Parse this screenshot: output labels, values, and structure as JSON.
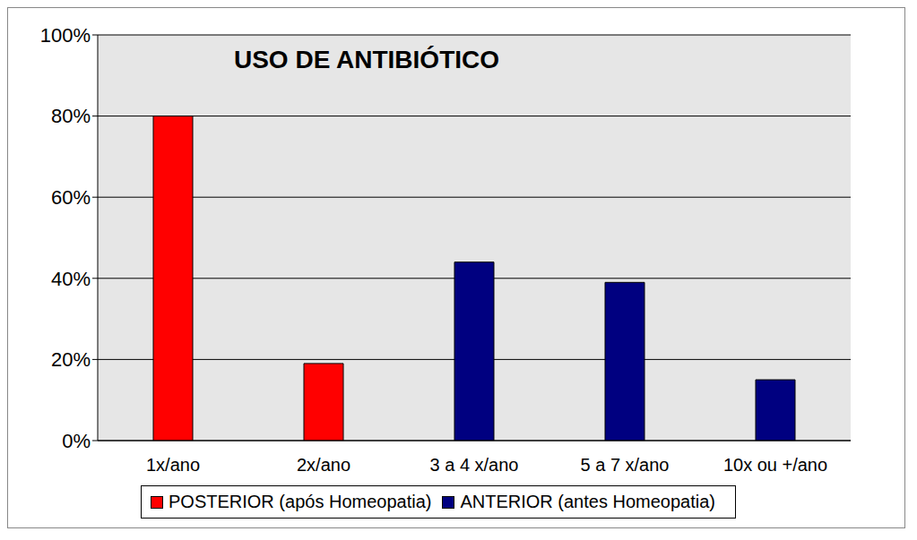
{
  "chart_data": {
    "type": "bar",
    "title": "USO DE ANTIBIÓTICO",
    "categories": [
      "1x/ano",
      "2x/ano",
      "3 a 4 x/ano",
      "5 a 7 x/ano",
      "10x ou +/ano"
    ],
    "series": [
      {
        "name": "POSTERIOR (após Homeopatia)",
        "color": "#ff0000",
        "values": [
          80,
          19,
          null,
          null,
          null
        ]
      },
      {
        "name": "ANTERIOR (antes Homeopatia)",
        "color": "#000080",
        "values": [
          null,
          null,
          44,
          39,
          15
        ]
      }
    ],
    "ylim": [
      0,
      100
    ],
    "yticks": [
      {
        "value": 0,
        "label": "0%"
      },
      {
        "value": 20,
        "label": "20%"
      },
      {
        "value": 40,
        "label": "40%"
      },
      {
        "value": 60,
        "label": "60%"
      },
      {
        "value": 80,
        "label": "80%"
      },
      {
        "value": 100,
        "label": "100%"
      }
    ],
    "grid": true,
    "legend": "bottom"
  }
}
